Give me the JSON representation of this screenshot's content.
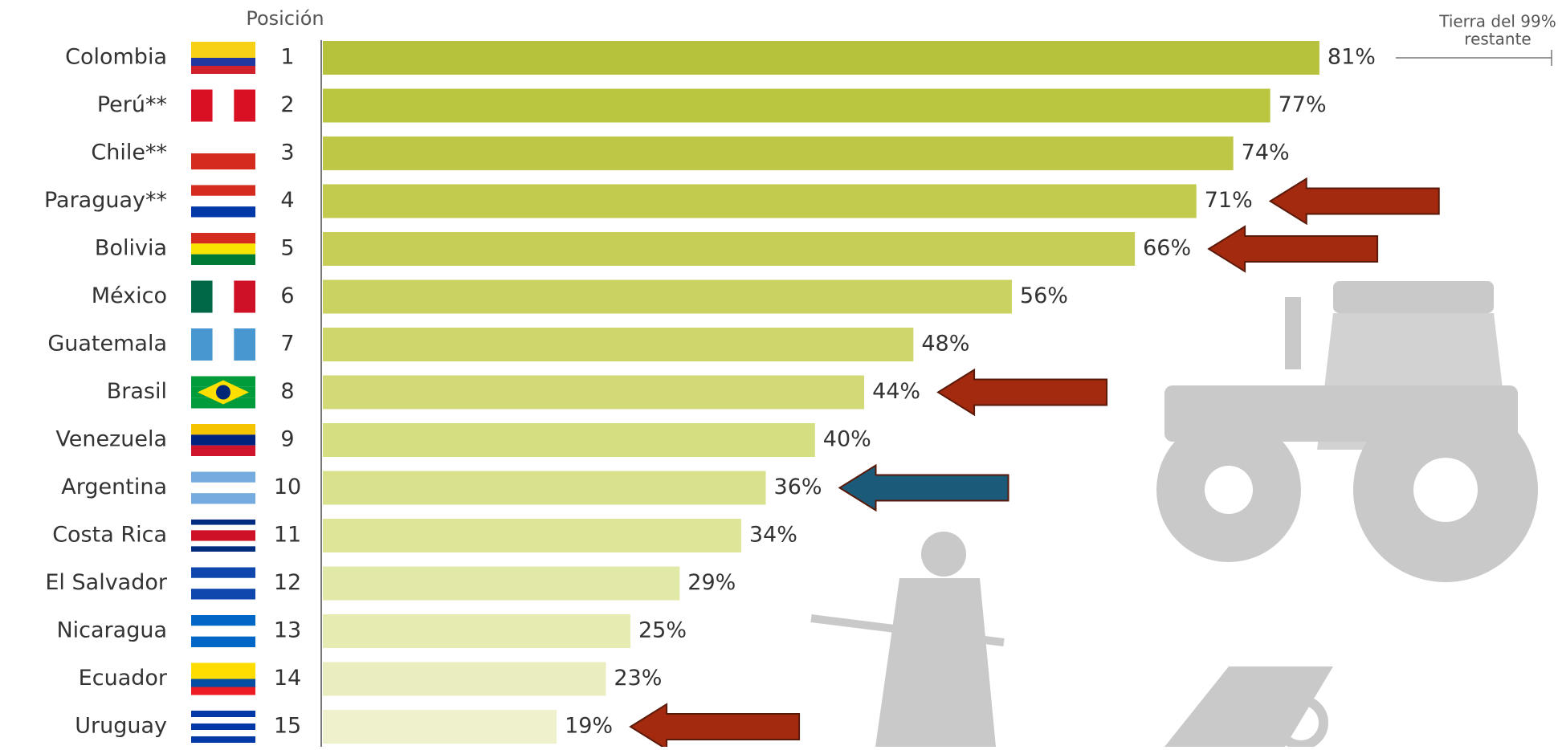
{
  "chart_data": {
    "type": "bar",
    "header": "Posición",
    "annotation": [
      "Tierra del 99%",
      "restante"
    ],
    "categories": [
      "Colombia",
      "Perú**",
      "Chile**",
      "Paraguay**",
      "Bolivia",
      "México",
      "Guatemala",
      "Brasil",
      "Venezuela",
      "Argentina",
      "Costa Rica",
      "El Salvador",
      "Nicaragua",
      "Ecuador",
      "Uruguay"
    ],
    "positions": [
      1,
      2,
      3,
      4,
      5,
      6,
      7,
      8,
      9,
      10,
      11,
      12,
      13,
      14,
      15
    ],
    "values": [
      81,
      77,
      74,
      71,
      66,
      56,
      48,
      44,
      40,
      36,
      34,
      29,
      25,
      23,
      19
    ],
    "value_labels": [
      "81%",
      "77%",
      "74%",
      "71%",
      "66%",
      "56%",
      "48%",
      "44%",
      "40%",
      "36%",
      "34%",
      "29%",
      "25%",
      "23%",
      "19%"
    ],
    "colors": [
      "#b6c23c",
      "#bac540",
      "#bec846",
      "#c2cb4e",
      "#c6ce57",
      "#cad361",
      "#ced76c",
      "#d2da77",
      "#d6de82",
      "#dae18d",
      "#dee498",
      "#e2e8a5",
      "#e6ebb2",
      "#eaeebf",
      "#eef1cc"
    ],
    "xlim": [
      0,
      100
    ]
  }
}
